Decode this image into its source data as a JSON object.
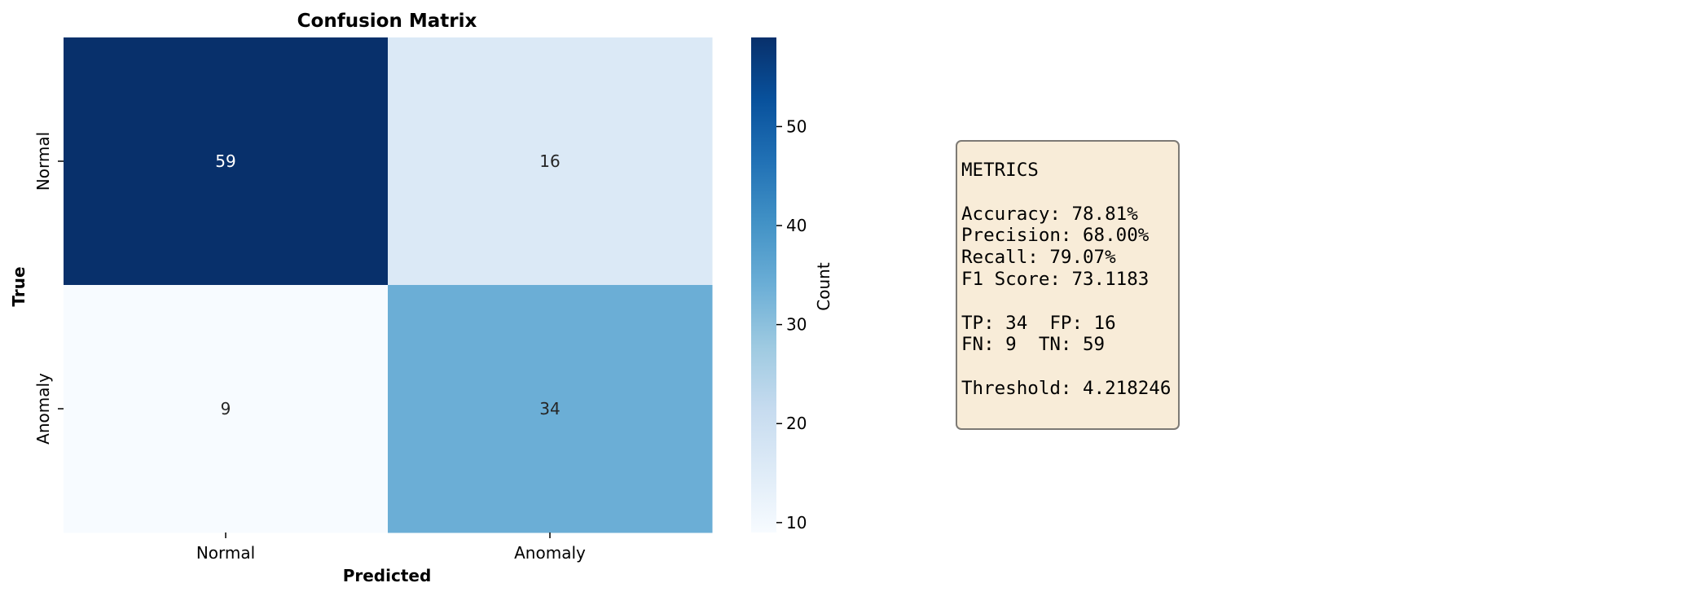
{
  "chart_data": {
    "type": "heatmap",
    "title": "Confusion Matrix",
    "xlabel": "Predicted",
    "ylabel": "True",
    "x_categories": [
      "Normal",
      "Anomaly"
    ],
    "y_categories": [
      "Normal",
      "Anomaly"
    ],
    "values": [
      [
        59,
        16
      ],
      [
        9,
        34
      ]
    ],
    "colormap": "Blues",
    "colorbar": {
      "label": "Count",
      "range": [
        9,
        59
      ],
      "ticks": [
        10,
        20,
        30,
        40,
        50
      ],
      "tick_labels": [
        "10",
        "20",
        "30",
        "40",
        "50"
      ]
    }
  },
  "metrics_panel": {
    "lines": [
      "METRICS",
      "",
      "Accuracy: 78.81%",
      "Precision: 68.00%",
      "Recall: 79.07%",
      "F1 Score: 73.1183",
      "",
      "TP: 34  FP: 16",
      "FN: 9  TN: 59",
      "",
      "Threshold: 4.218246"
    ],
    "background": "#f8ecd8"
  }
}
